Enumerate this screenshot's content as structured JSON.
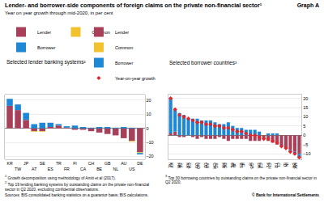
{
  "header": {
    "title": "Lender- and borrower-side components of foreign claims on the private non-financial sector¹",
    "subtitle": "Year on year growth through mid-2020, in per cent",
    "graph_label": "Graph A"
  },
  "chart_data": [
    {
      "type": "bar",
      "title": "Selected lender banking systems²",
      "categories": [
        "KR",
        "TW",
        "JP",
        "AT",
        "SE",
        "ES",
        "TR",
        "FR",
        "FI",
        "CA",
        "CH",
        "BE",
        "GB",
        "NL",
        "AU",
        "US",
        "DE"
      ],
      "series": [
        {
          "name": "Lender",
          "color": "#a8405a",
          "values": [
            16,
            13,
            6,
            -2,
            -2,
            1,
            2,
            0.5,
            -1,
            -1,
            -2,
            -3,
            -4,
            -5,
            -7,
            -9,
            -17
          ]
        },
        {
          "name": "Common",
          "color": "#f2c12e",
          "values": [
            0,
            0,
            0,
            -0.5,
            -0.5,
            0,
            0,
            0,
            0,
            0,
            0,
            0,
            0,
            0,
            0,
            -0.5,
            -0.5
          ]
        },
        {
          "name": "Borrower",
          "color": "#1e88d4",
          "values": [
            5,
            4,
            5,
            3,
            4,
            3,
            1,
            1,
            2,
            1,
            0.5,
            1,
            1,
            0.5,
            1,
            0.5,
            -1
          ]
        }
      ],
      "ylim": [
        -22,
        24
      ],
      "yticks": [
        {
          "value": -20,
          "label": "–20"
        },
        {
          "value": -10,
          "label": "–10"
        },
        0,
        10,
        20
      ],
      "stacked": true,
      "grid": true,
      "legend": "top"
    },
    {
      "type": "bar",
      "title": "Selected borrower countries³",
      "categories": [
        "NL",
        "KY",
        "HK",
        "SE",
        "KR",
        "CA",
        "US",
        "NO",
        "LU",
        "AU",
        "CH",
        "SG",
        "FR",
        "DE",
        "BE",
        "JP",
        "ES",
        "IE",
        "IT",
        "GB",
        "DK",
        "CZ",
        "PL",
        "CN",
        "TR",
        "CL",
        "ID",
        "IN",
        "BR",
        "MX"
      ],
      "series": [
        {
          "name": "Lender",
          "color": "#a8405a",
          "values": [
            1,
            2,
            -1,
            -1,
            0,
            -1,
            -2,
            -1,
            -2,
            -2,
            -2,
            -1,
            -2,
            -3,
            -2,
            -2,
            -2,
            -2,
            -3,
            -3,
            -3,
            -2,
            -3,
            -4,
            -5,
            -6,
            -7,
            -8,
            -9,
            -10
          ]
        },
        {
          "name": "Common",
          "color": "#f2c12e",
          "values": [
            0,
            0,
            0,
            0,
            0,
            0,
            0,
            0,
            0,
            0,
            0,
            0,
            0,
            0,
            0,
            0,
            0,
            0,
            0,
            0,
            0,
            0,
            0,
            0,
            0,
            0,
            0,
            0,
            0,
            0
          ]
        },
        {
          "name": "Borrower",
          "color": "#1e88d4",
          "values": [
            19,
            12,
            12,
            11,
            9,
            9,
            9,
            8,
            8,
            8,
            7,
            6,
            6,
            7,
            5,
            4,
            4,
            3,
            3,
            3,
            2,
            0,
            1,
            1,
            1,
            0,
            0,
            -1,
            -1,
            -2
          ]
        },
        {
          "name": "Year-on-year growth",
          "type": "scatter",
          "marker": "diamond",
          "color": "#e3262b",
          "values": [
            20,
            14,
            11,
            10,
            9,
            8,
            7,
            7,
            6,
            6,
            5,
            5,
            4,
            4,
            3,
            2,
            2,
            1,
            0,
            0,
            -1,
            -2,
            -2,
            -3,
            -4,
            -6,
            -7,
            -9,
            -10,
            -12
          ]
        }
      ],
      "ylim": [
        -13,
        22
      ],
      "yticks": [
        {
          "value": -10,
          "label": "–10"
        },
        {
          "value": -5,
          "label": "–5"
        },
        0,
        5,
        10,
        15,
        20
      ],
      "stacked": true,
      "grid": true,
      "legend": "top"
    }
  ],
  "footnotes": [
    {
      "marker": "1",
      "text": "Growth decomposition using methodology of Amiti et al (2017)."
    },
    {
      "marker": "2",
      "text": "Top 19 lending banking systems by outstanding claims on the private non-financial sector in Q2 2020, excluding confidential observations."
    },
    {
      "marker": "3",
      "text": "Top 30 borrowing countries by outstanding claims on the private non-financial sector in Q2 2020."
    }
  ],
  "sources": "Sources: BIS consolidated banking statistics on a guarantor basis; BIS calculations.",
  "copyright": "© Bank for International Settlements"
}
